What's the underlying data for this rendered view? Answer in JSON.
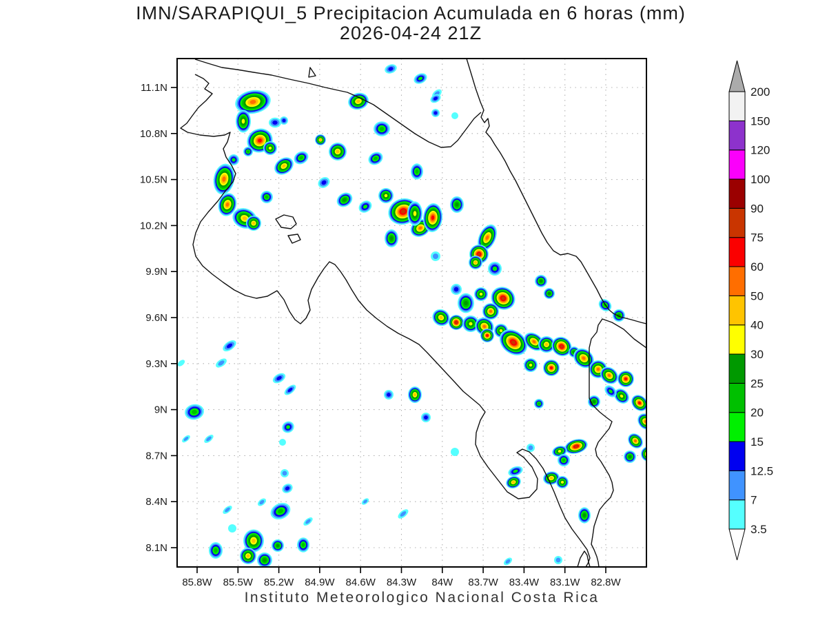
{
  "title": {
    "line1": "IMN/SARAPIQUI_5 Precipitacion Acumulada en 6 horas (mm)",
    "line2": "2026-04-24 21Z"
  },
  "caption": "Instituto Meteorologico Nacional Costa Rica",
  "axes": {
    "lat_tick_labels": [
      "11.1N",
      "10.8N",
      "10.5N",
      "10.2N",
      "9.9N",
      "9.6N",
      "9.3N",
      "9N",
      "8.7N",
      "8.4N",
      "8.1N"
    ],
    "lon_tick_labels": [
      "85.8W",
      "85.5W",
      "85.2W",
      "84.9W",
      "84.6W",
      "84.3W",
      "84W",
      "83.7W",
      "83.4W",
      "83.1W",
      "82.8W"
    ],
    "lat_tick_values": [
      11.1,
      10.8,
      10.5,
      10.2,
      9.9,
      9.6,
      9.3,
      9.0,
      8.7,
      8.4,
      8.1
    ],
    "lon_tick_values": [
      -85.8,
      -85.5,
      -85.2,
      -84.9,
      -84.6,
      -84.3,
      -84.0,
      -83.7,
      -83.4,
      -83.1,
      -82.8
    ]
  },
  "chart_data": {
    "type": "heatmap",
    "subtype": "filled-contour-precipitation-map",
    "units": "mm",
    "valid_time": "2026-04-24 21Z",
    "model": "IMN/SARAPIQUI_5",
    "region": "Costa Rica",
    "levels": [
      3.5,
      7,
      12.5,
      15,
      20,
      25,
      30,
      40,
      50,
      60,
      75,
      90,
      100,
      120,
      150,
      200
    ],
    "level_labels": [
      "3.5",
      "7",
      "12.5",
      "15",
      "20",
      "25",
      "30",
      "40",
      "50",
      "60",
      "75",
      "90",
      "100",
      "120",
      "150",
      "200"
    ],
    "palette": [
      "#55ffff",
      "#4093ff",
      "#0000f0",
      "#00f000",
      "#00c000",
      "#009900",
      "#ffff00",
      "#ffc400",
      "#ff6e00",
      "#fb0000",
      "#c93500",
      "#9b0000",
      "#fb00fb",
      "#8d32cc",
      "#f2f2f2"
    ],
    "over_color": "#ababab",
    "under_color": "#ffffff",
    "legend_position": "right",
    "grid": "dotted",
    "cell_fields": [
      "x_px",
      "y_px",
      "peak_mm",
      "radius_px",
      "aspect",
      "rotation_deg"
    ],
    "cells": [
      [
        367,
        148,
        50,
        26,
        0.65,
        -10
      ],
      [
        353,
        176,
        30,
        11,
        1.5,
        0
      ],
      [
        377,
        204,
        60,
        19,
        0.9,
        -25
      ],
      [
        392,
        215,
        30,
        10,
        1,
        0
      ],
      [
        412,
        241,
        40,
        15,
        0.75,
        -35
      ],
      [
        437,
        229,
        20,
        11,
        0.8,
        -30
      ],
      [
        465,
        203,
        40,
        8,
        1,
        0
      ],
      [
        490,
        220,
        40,
        13,
        1,
        0
      ],
      [
        520,
        147,
        40,
        15,
        0.8,
        -15
      ],
      [
        554,
        187,
        20,
        12,
        0.9,
        0
      ],
      [
        545,
        230,
        20,
        11,
        0.8,
        -30
      ],
      [
        567,
        100,
        12.5,
        9,
        0.7,
        -20
      ],
      [
        610,
        114,
        15,
        10,
        0.7,
        -25
      ],
      [
        634,
        136,
        7,
        8,
        0.6,
        -40
      ],
      [
        632,
        164,
        12.5,
        6,
        1,
        0
      ],
      [
        660,
        168,
        3.5,
        5,
        1,
        0
      ],
      [
        325,
        260,
        50,
        15,
        1.5,
        10
      ],
      [
        330,
        297,
        50,
        13,
        1.3,
        15
      ],
      [
        355,
        317,
        40,
        18,
        0.8,
        20
      ],
      [
        368,
        324,
        40,
        11,
        1,
        0
      ],
      [
        339,
        232,
        15,
        8,
        1,
        0
      ],
      [
        360,
        220,
        20,
        7,
        1,
        0
      ],
      [
        387,
        286,
        20,
        9,
        1,
        0
      ],
      [
        399,
        178,
        12.5,
        9,
        0.8,
        0
      ],
      [
        412,
        175,
        12.5,
        6,
        1,
        0
      ],
      [
        585,
        307,
        75,
        22,
        0.85,
        -20
      ],
      [
        560,
        284,
        30,
        11,
        1,
        -20
      ],
      [
        610,
        331,
        50,
        15,
        0.8,
        -30
      ],
      [
        568,
        346,
        25,
        10,
        1.3,
        0
      ],
      [
        602,
        310,
        30,
        11,
        1.6,
        0
      ],
      [
        628,
        316,
        60,
        14,
        1.5,
        5
      ],
      [
        663,
        297,
        25,
        10,
        1.2,
        0
      ],
      [
        605,
        249,
        20,
        9,
        1.3,
        0
      ],
      [
        500,
        290,
        25,
        12,
        0.8,
        -35
      ],
      [
        530,
        300,
        15,
        10,
        0.8,
        -35
      ],
      [
        470,
        265,
        12.5,
        9,
        0.8,
        -35
      ],
      [
        707,
        345,
        50,
        12,
        1.7,
        25
      ],
      [
        695,
        369,
        75,
        14,
        1,
        0
      ],
      [
        690,
        381,
        40,
        10,
        1,
        0
      ],
      [
        718,
        390,
        15,
        10,
        1,
        0
      ],
      [
        730,
        433,
        75,
        18,
        0.9,
        30
      ],
      [
        712,
        452,
        50,
        12,
        1,
        0
      ],
      [
        698,
        427,
        30,
        10,
        1,
        0
      ],
      [
        676,
        440,
        25,
        12,
        1.2,
        0
      ],
      [
        662,
        420,
        12.5,
        8,
        1,
        0
      ],
      [
        632,
        372,
        7,
        7,
        1,
        0
      ],
      [
        785,
        408,
        25,
        9,
        1,
        0
      ],
      [
        797,
        426,
        25,
        8,
        1,
        0
      ],
      [
        640,
        461,
        40,
        13,
        0.9,
        35
      ],
      [
        662,
        468,
        75,
        11,
        1,
        35
      ],
      [
        683,
        470,
        30,
        12,
        1,
        0
      ],
      [
        703,
        474,
        50,
        14,
        0.9,
        35
      ],
      [
        707,
        487,
        60,
        10,
        1,
        0
      ],
      [
        727,
        480,
        30,
        10,
        1,
        35
      ],
      [
        745,
        497,
        75,
        22,
        0.75,
        38
      ],
      [
        775,
        496,
        50,
        16,
        0.7,
        38
      ],
      [
        793,
        500,
        40,
        12,
        1,
        0
      ],
      [
        815,
        503,
        75,
        15,
        0.9,
        38
      ],
      [
        833,
        511,
        25,
        8,
        1,
        0
      ],
      [
        800,
        534,
        60,
        12,
        1,
        0
      ],
      [
        770,
        530,
        30,
        10,
        1,
        0
      ],
      [
        847,
        520,
        50,
        16,
        0.8,
        40
      ],
      [
        868,
        536,
        50,
        13,
        1,
        0
      ],
      [
        884,
        545,
        50,
        14,
        0.8,
        40
      ],
      [
        908,
        550,
        60,
        12,
        1,
        0
      ],
      [
        928,
        585,
        60,
        13,
        0.8,
        45
      ],
      [
        902,
        575,
        30,
        12,
        0.8,
        45
      ],
      [
        862,
        583,
        25,
        9,
        1,
        0
      ],
      [
        937,
        612,
        50,
        13,
        0.8,
        45
      ],
      [
        922,
        640,
        50,
        12,
        0.8,
        45
      ],
      [
        941,
        659,
        60,
        11,
        1,
        0
      ],
      [
        914,
        663,
        25,
        9,
        1,
        0
      ],
      [
        886,
        568,
        15,
        10,
        0.7,
        45
      ],
      [
        878,
        443,
        20,
        10,
        0.8,
        40
      ],
      [
        898,
        458,
        25,
        9,
        1,
        0
      ],
      [
        836,
        648,
        75,
        17,
        0.6,
        -15
      ],
      [
        812,
        655,
        30,
        11,
        0.7,
        -15
      ],
      [
        782,
        586,
        20,
        7,
        1,
        0
      ],
      [
        818,
        668,
        20,
        9,
        1,
        0
      ],
      [
        848,
        748,
        25,
        9,
        1.3,
        0
      ],
      [
        800,
        694,
        40,
        12,
        0.8,
        -10
      ],
      [
        816,
        700,
        30,
        9,
        1,
        0
      ],
      [
        745,
        700,
        40,
        11,
        0.8,
        -20
      ],
      [
        748,
        684,
        15,
        11,
        0.6,
        -20
      ],
      [
        770,
        650,
        7,
        6,
        1,
        0
      ],
      [
        737,
        815,
        7,
        7,
        0.6,
        -40
      ],
      [
        810,
        813,
        7,
        6,
        1,
        0
      ],
      [
        660,
        656,
        3.5,
        6,
        1,
        0
      ],
      [
        618,
        606,
        12.5,
        7,
        1,
        0
      ],
      [
        602,
        573,
        40,
        10,
        1.2,
        0
      ],
      [
        564,
        573,
        12.5,
        7,
        1,
        0
      ],
      [
        282,
        598,
        20,
        14,
        0.8,
        -10
      ],
      [
        333,
        502,
        12.5,
        11,
        0.55,
        -35
      ],
      [
        321,
        527,
        7,
        9,
        0.55,
        -35
      ],
      [
        405,
        549,
        12.5,
        10,
        0.6,
        -30
      ],
      [
        421,
        566,
        12.5,
        10,
        0.5,
        -40
      ],
      [
        418,
        620,
        15,
        9,
        0.9,
        -30
      ],
      [
        417,
        709,
        12.5,
        8,
        0.8,
        -30
      ],
      [
        407,
        742,
        20,
        15,
        0.75,
        -25
      ],
      [
        313,
        799,
        20,
        10,
        1.2,
        0
      ],
      [
        368,
        785,
        40,
        15,
        1.1,
        0
      ],
      [
        360,
        807,
        40,
        12,
        1,
        0
      ],
      [
        384,
        813,
        25,
        11,
        1,
        0
      ],
      [
        403,
        792,
        25,
        9,
        1,
        0
      ],
      [
        440,
        791,
        20,
        9,
        1.2,
        0
      ],
      [
        530,
        728,
        7,
        6,
        0.6,
        -40
      ],
      [
        585,
        746,
        7,
        9,
        0.5,
        -40
      ],
      [
        447,
        757,
        7,
        8,
        0.5,
        -40
      ],
      [
        380,
        729,
        7,
        7,
        0.6,
        -40
      ],
      [
        330,
        740,
        7,
        8,
        0.5,
        -40
      ],
      [
        270,
        637,
        7,
        7,
        0.5,
        -40
      ],
      [
        303,
        637,
        7,
        8,
        0.5,
        -40
      ],
      [
        413,
        687,
        7,
        6,
        1,
        0
      ],
      [
        410,
        642,
        3.5,
        5,
        1,
        0
      ],
      [
        337,
        767,
        3.5,
        6,
        1,
        0
      ],
      [
        263,
        527,
        3.5,
        6,
        0.6,
        -40
      ],
      [
        632,
        143,
        12.5,
        8,
        0.7,
        -30
      ]
    ]
  }
}
